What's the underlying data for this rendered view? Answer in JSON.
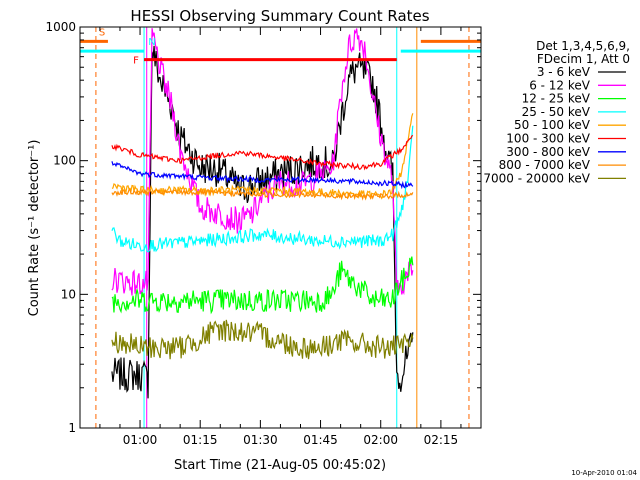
{
  "chart_data": {
    "type": "line",
    "title": "HESSI Observing Summary Count Rates",
    "xlabel": "Start Time (21-Aug-05 00:45:02)",
    "ylabel": "Count Rate (s⁻¹ detector⁻¹)",
    "y_scale": "log",
    "xlim": [
      "00:45:02",
      "02:25:00"
    ],
    "ylim": [
      1,
      1000
    ],
    "x_ticks": [
      "01:00",
      "01:15",
      "01:30",
      "01:45",
      "02:00",
      "02:15"
    ],
    "y_ticks": [
      "1",
      "10",
      "100",
      "1000"
    ],
    "legend_header": [
      "Det 1,3,4,5,6,9,",
      "FDecim 1, Att 0"
    ],
    "legend_position": "right",
    "timestamp": "10-Apr-2010 01:04",
    "series": [
      {
        "name": "3 - 6 keV",
        "color": "#000000",
        "t": [
          "00:53",
          "01:00",
          "01:01",
          "01:02",
          "01:03",
          "01:05",
          "01:08",
          "01:10",
          "01:15",
          "01:20",
          "01:25",
          "01:30",
          "01:35",
          "01:40",
          "01:45",
          "01:48",
          "01:50",
          "01:52",
          "01:54",
          "01:56",
          "01:58",
          "02:00",
          "02:02",
          "02:03",
          "02:04",
          "02:05",
          "02:07",
          "02:08"
        ],
        "v": [
          2.5,
          2.5,
          2.5,
          2.2,
          700,
          400,
          250,
          150,
          90,
          85,
          60,
          70,
          80,
          90,
          100,
          90,
          200,
          400,
          500,
          450,
          380,
          200,
          100,
          80,
          2.5,
          2.5,
          3.5,
          4.5
        ]
      },
      {
        "name": "6 - 12 keV",
        "color": "#ff00ff",
        "t": [
          "00:53",
          "01:00",
          "01:01",
          "01:02",
          "01:03",
          "01:05",
          "01:08",
          "01:10",
          "01:15",
          "01:20",
          "01:25",
          "01:28",
          "01:30",
          "01:35",
          "01:40",
          "01:45",
          "01:48",
          "01:50",
          "01:52",
          "01:54",
          "01:56",
          "01:58",
          "02:00",
          "02:02",
          "02:03",
          "02:04",
          "02:05",
          "02:07",
          "02:08"
        ],
        "v": [
          13,
          12,
          12,
          12,
          900,
          500,
          250,
          120,
          45,
          40,
          35,
          40,
          50,
          70,
          65,
          80,
          90,
          300,
          700,
          900,
          700,
          300,
          150,
          90,
          70,
          10,
          12,
          14,
          16
        ]
      },
      {
        "name": "12 - 25 keV",
        "color": "#00ff00",
        "t": [
          "00:53",
          "01:00",
          "01:05",
          "01:15",
          "01:30",
          "01:45",
          "01:48",
          "01:50",
          "01:52",
          "01:55",
          "01:58",
          "02:00",
          "02:03",
          "02:04",
          "02:05",
          "02:07",
          "02:08"
        ],
        "v": [
          9,
          9,
          9,
          9,
          9,
          9,
          10,
          15,
          13,
          11,
          9,
          9,
          9,
          11,
          12,
          15,
          20
        ]
      },
      {
        "name": "25 - 50 keV",
        "color": "#00ffff",
        "t": [
          "00:53",
          "00:55",
          "01:00",
          "01:15",
          "01:30",
          "01:45",
          "02:00",
          "02:03",
          "02:05",
          "02:07",
          "02:08"
        ],
        "v": [
          30,
          25,
          23,
          25,
          28,
          25,
          25,
          28,
          40,
          80,
          170
        ]
      },
      {
        "name": "50 - 100 keV",
        "color": "#ffa500",
        "t": [
          "00:53",
          "01:00",
          "01:15",
          "01:30",
          "01:45",
          "02:00",
          "02:03",
          "02:05",
          "02:07",
          "02:08"
        ],
        "v": [
          65,
          60,
          60,
          60,
          58,
          55,
          60,
          80,
          150,
          220
        ]
      },
      {
        "name": "100 - 300 keV",
        "color": "#ff0000",
        "t": [
          "00:53",
          "01:00",
          "01:10",
          "01:20",
          "01:25",
          "01:30",
          "01:35",
          "01:45",
          "01:55",
          "02:00",
          "02:03",
          "02:05",
          "02:07",
          "02:08"
        ],
        "v": [
          130,
          110,
          100,
          110,
          115,
          110,
          105,
          95,
          90,
          95,
          110,
          120,
          140,
          160
        ]
      },
      {
        "name": "300 - 800 keV",
        "color": "#0000ff",
        "t": [
          "00:53",
          "01:00",
          "01:15",
          "01:30",
          "01:45",
          "02:00",
          "02:08"
        ],
        "v": [
          95,
          80,
          75,
          72,
          72,
          68,
          65
        ]
      },
      {
        "name": "800 - 7000 keV",
        "color": "#ff8c00",
        "t": [
          "00:53",
          "01:00",
          "01:15",
          "01:30",
          "01:45",
          "02:00",
          "02:08"
        ],
        "v": [
          58,
          58,
          58,
          56,
          55,
          54,
          56
        ]
      },
      {
        "name": "7000 - 20000 keV",
        "color": "#808000",
        "t": [
          "00:53",
          "01:00",
          "01:10",
          "01:20",
          "01:30",
          "01:40",
          "01:45",
          "01:50",
          "02:00",
          "02:05",
          "02:08"
        ],
        "v": [
          4.5,
          4,
          4,
          5.5,
          5,
          4,
          4,
          4.5,
          4,
          4,
          4.5
        ]
      }
    ],
    "flags": [
      {
        "name": "S",
        "color": "#ff6600",
        "start": "00:45:02",
        "end": "00:52",
        "level": 780
      },
      {
        "name": "N",
        "color": "#00ffff",
        "start": "00:45:02",
        "end": "01:01",
        "level": 660
      },
      {
        "name": "F",
        "color": "#ff0000",
        "start": "01:01",
        "end": "02:04",
        "level": 570
      },
      {
        "name": "S",
        "color": "#ff6600",
        "start": "02:10",
        "end": "02:25",
        "level": 780
      },
      {
        "name": "N",
        "color": "#00ffff",
        "start": "02:05",
        "end": "02:25",
        "level": 660
      }
    ],
    "vertical_markers": [
      {
        "time": "00:49",
        "color": "#ff6600",
        "style": "dashed"
      },
      {
        "time": "01:01",
        "color": "#00ffff",
        "style": "solid"
      },
      {
        "time": "01:01:40",
        "color": "#ff00ff",
        "style": "solid"
      },
      {
        "time": "02:04",
        "color": "#00ffff",
        "style": "solid"
      },
      {
        "time": "02:09",
        "color": "#ff8c00",
        "style": "solid"
      },
      {
        "time": "02:22",
        "color": "#ff6600",
        "style": "dashed"
      }
    ]
  }
}
